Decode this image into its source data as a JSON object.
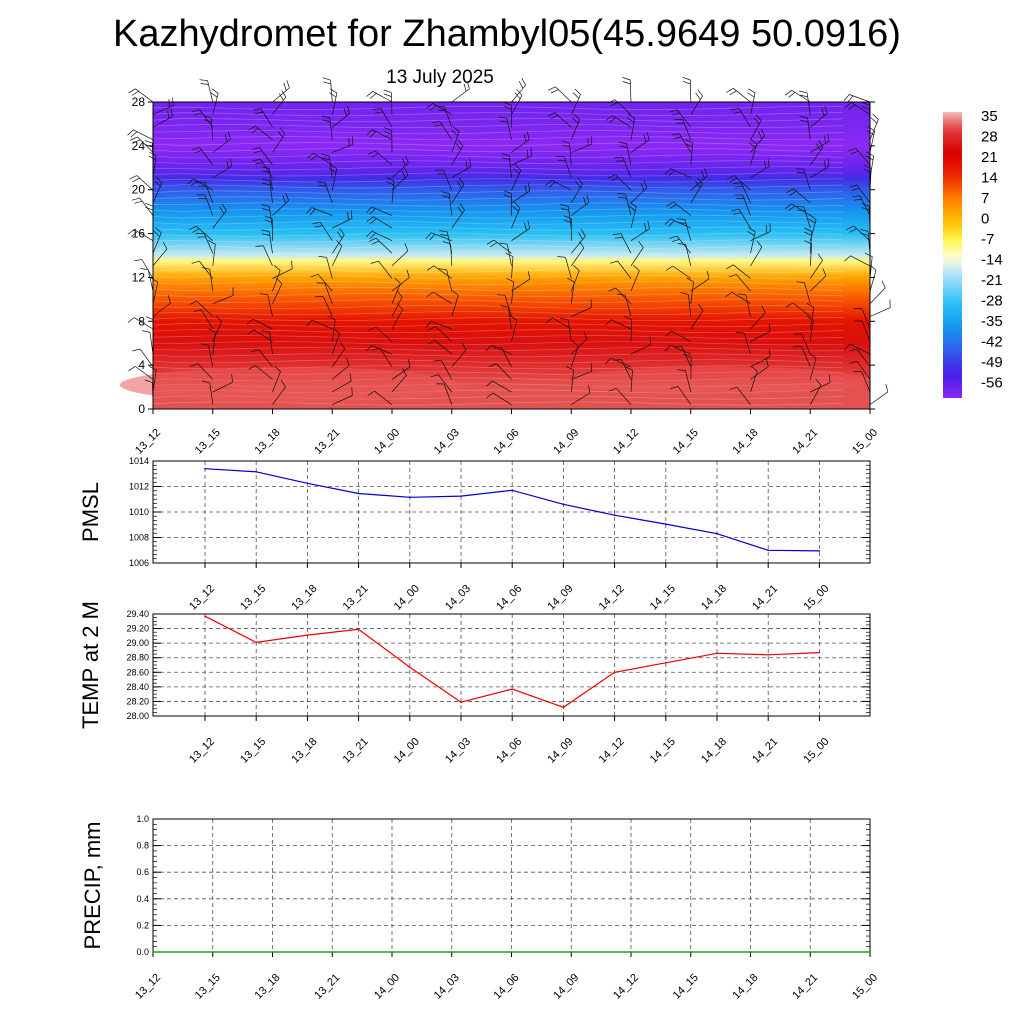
{
  "title": "Kazhydromet for Zhambyl05(45.9649 50.0916)",
  "subtitle": "13 July 2025",
  "time_labels": [
    "13_12",
    "13_15",
    "13_18",
    "13_21",
    "14_00",
    "14_03",
    "14_06",
    "14_09",
    "14_12",
    "14_15",
    "14_18",
    "14_21",
    "15_00"
  ],
  "chart_data": [
    {
      "type": "heatmap",
      "name_panel": "vertical-temperature-wind-cross-section",
      "xlabel": "",
      "ylabel": "",
      "y_ticks": [
        0,
        4,
        8,
        12,
        16,
        20,
        24,
        28
      ],
      "ylim": [
        0,
        28
      ],
      "colorbar_ticks": [
        35,
        28,
        21,
        14,
        7,
        0,
        -7,
        -14,
        -21,
        -28,
        -35,
        -42,
        -49,
        -56
      ],
      "colorbar_range": [
        -60,
        38
      ],
      "temperature_profile": [
        {
          "level": 0,
          "value": 33
        },
        {
          "level": 2,
          "value": 33
        },
        {
          "level": 4,
          "value": 30
        },
        {
          "level": 6,
          "value": 26
        },
        {
          "level": 8,
          "value": 20
        },
        {
          "level": 10,
          "value": 12
        },
        {
          "level": 12,
          "value": 4
        },
        {
          "level": 13.5,
          "value": -8
        },
        {
          "level": 14,
          "value": -16
        },
        {
          "level": 16,
          "value": -28
        },
        {
          "level": 18,
          "value": -36
        },
        {
          "level": 20,
          "value": -44
        },
        {
          "level": 21,
          "value": -50
        },
        {
          "level": 22,
          "value": -56
        },
        {
          "level": 24,
          "value": -60
        },
        {
          "level": 26,
          "value": -58
        },
        {
          "level": 28,
          "value": -57
        }
      ],
      "wind_barbs": true
    },
    {
      "type": "line",
      "ylabel": "PMSL",
      "ylim": [
        1006,
        1014
      ],
      "y_ticks": [
        1006,
        1008,
        1010,
        1012,
        1014
      ],
      "categories": [
        "13_12",
        "13_15",
        "13_18",
        "13_21",
        "14_00",
        "14_03",
        "14_06",
        "14_09",
        "14_12",
        "14_15",
        "14_18",
        "14_21",
        "15_00"
      ],
      "values": [
        1013.4,
        1013.15,
        1012.25,
        1011.45,
        1011.15,
        1011.25,
        1011.7,
        1010.6,
        1009.75,
        1009.05,
        1008.3,
        1007.0,
        1006.95
      ],
      "color": "#0000cc",
      "grid": true
    },
    {
      "type": "line",
      "ylabel": "TEMP at 2 M",
      "ylim": [
        28.0,
        29.4
      ],
      "y_ticks": [
        "28.00",
        "28.20",
        "28.40",
        "28.60",
        "28.80",
        "29.00",
        "29.20",
        "29.40"
      ],
      "categories": [
        "13_12",
        "13_15",
        "13_18",
        "13_21",
        "14_00",
        "14_03",
        "14_06",
        "14_09",
        "14_12",
        "14_15",
        "14_18",
        "14_21",
        "15_00"
      ],
      "values": [
        29.37,
        29.01,
        29.11,
        29.19,
        28.67,
        28.19,
        28.37,
        28.12,
        28.6,
        28.73,
        28.86,
        28.84,
        28.87
      ],
      "color": "#ee0000",
      "grid": true
    },
    {
      "type": "line",
      "ylabel": "PRECIP, mm",
      "ylim": [
        0.0,
        1.0
      ],
      "y_ticks": [
        "0.0",
        "0.2",
        "0.4",
        "0.6",
        "0.8",
        "1.0"
      ],
      "categories": [
        "13_12",
        "13_15",
        "13_18",
        "13_21",
        "14_00",
        "14_03",
        "14_06",
        "14_09",
        "14_12",
        "14_15",
        "14_18",
        "14_21",
        "15_00"
      ],
      "values": [
        0,
        0,
        0,
        0,
        0,
        0,
        0,
        0,
        0,
        0,
        0,
        0,
        0
      ],
      "color": "#008800",
      "grid": true
    }
  ]
}
